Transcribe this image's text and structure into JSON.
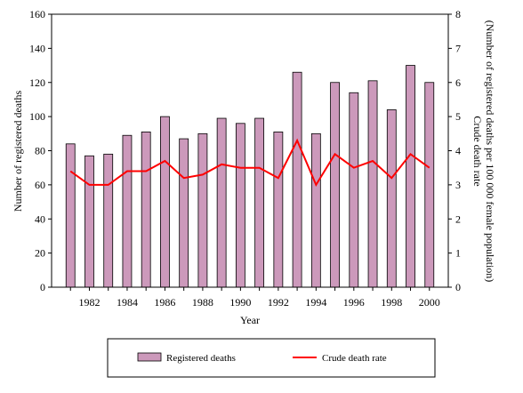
{
  "chart_data": {
    "type": "bar",
    "title": "",
    "xlabel": "Year",
    "ylabel": "Number of registered deaths",
    "y2label_line1": "Crude death rate",
    "y2label_line2": "(Number of registered deaths per 100 000 female population)",
    "ylim": [
      0,
      160
    ],
    "yticks": [
      0,
      20,
      40,
      60,
      80,
      100,
      120,
      140,
      160
    ],
    "y2lim": [
      0,
      8
    ],
    "y2ticks": [
      0,
      1,
      2,
      3,
      4,
      5,
      6,
      7,
      8
    ],
    "categories": [
      "1981",
      "1982",
      "1983",
      "1984",
      "1985",
      "1986",
      "1987",
      "1988",
      "1989",
      "1990",
      "1991",
      "1992",
      "1993",
      "1994",
      "1995",
      "1996",
      "1997",
      "1998",
      "1999",
      "2000"
    ],
    "xtick_labels": [
      "1982",
      "1984",
      "1986",
      "1988",
      "1990",
      "1992",
      "1994",
      "1996",
      "1998",
      "2000"
    ],
    "series": [
      {
        "name": "Registered deaths",
        "type": "bar",
        "axis": "left",
        "color": "#cc99bb",
        "values": [
          84,
          77,
          78,
          89,
          91,
          100,
          87,
          90,
          99,
          96,
          99,
          91,
          126,
          90,
          120,
          114,
          121,
          104,
          130,
          120
        ]
      },
      {
        "name": "Crude death rate",
        "type": "line",
        "axis": "right",
        "color": "#ff0000",
        "values": [
          3.4,
          3.0,
          3.0,
          3.4,
          3.4,
          3.7,
          3.2,
          3.3,
          3.6,
          3.5,
          3.5,
          3.2,
          4.3,
          3.0,
          3.9,
          3.5,
          3.7,
          3.2,
          3.9,
          3.5
        ]
      }
    ],
    "legend_position": "bottom"
  }
}
